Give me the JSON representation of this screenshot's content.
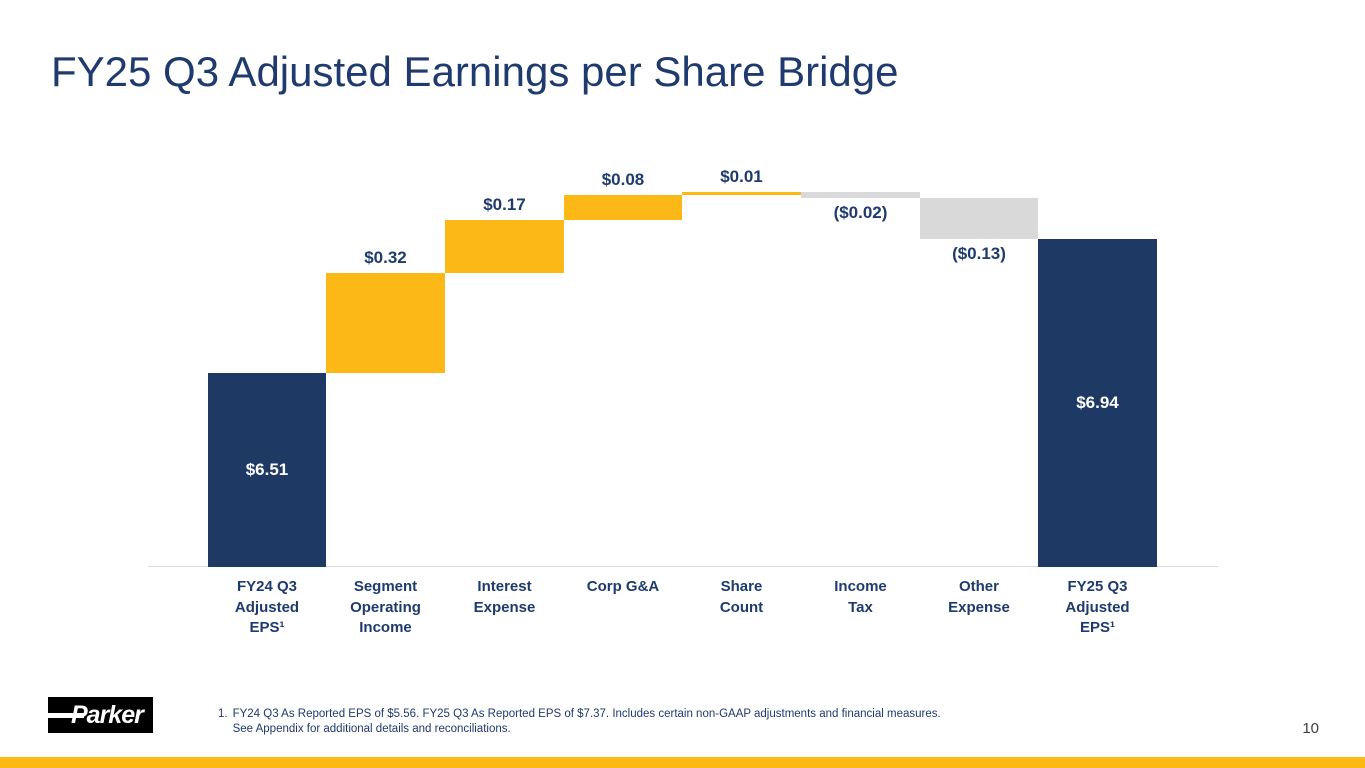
{
  "slide": {
    "title": "FY25 Q3 Adjusted Earnings per Share Bridge",
    "page_number": "10",
    "footnote": {
      "marker": "1.",
      "line1": "FY24 Q3 As Reported EPS of $5.56. FY25 Q3 As Reported EPS of $7.37. Includes certain non-GAAP adjustments and financial measures.",
      "line2": "See Appendix for additional details and reconciliations."
    },
    "logo_text": "Parker"
  },
  "colors": {
    "navy_bar": "#1e3a64",
    "gold_bar": "#fcb817",
    "gray_bar": "#d9d9d9",
    "title_text": "#1f3a6e",
    "value_label_text": "#1f3a6e",
    "value_label_inside_text": "#ffffff",
    "axis_line": "#d9dde3",
    "accent_strip": "#fcb813",
    "logo_background": "#000000"
  },
  "chart_data": {
    "type": "bar",
    "variant": "waterfall",
    "title": "FY25 Q3 Adjusted Earnings per Share Bridge",
    "xlabel": "",
    "ylabel": "",
    "ylim": [
      5.89,
      7.25
    ],
    "grid": false,
    "legend": false,
    "categories": [
      "FY24 Q3 Adjusted EPS¹",
      "Segment Operating Income",
      "Interest Expense",
      "Corp G&A",
      "Share Count",
      "Income Tax",
      "Other Expense",
      "FY25 Q3 Adjusted EPS¹"
    ],
    "category_lines": [
      [
        "FY24 Q3",
        "Adjusted",
        "EPS¹"
      ],
      [
        "Segment",
        "Operating",
        "Income"
      ],
      [
        "Interest",
        "Expense"
      ],
      [
        "Corp G&A"
      ],
      [
        "Share",
        "Count"
      ],
      [
        "Income",
        "Tax"
      ],
      [
        "Other",
        "Expense"
      ],
      [
        "FY25 Q3",
        "Adjusted",
        "EPS¹"
      ]
    ],
    "bars": [
      {
        "kind": "total",
        "value": 6.51,
        "display": "$6.51"
      },
      {
        "kind": "delta",
        "value": 0.32,
        "display": "$0.32"
      },
      {
        "kind": "delta",
        "value": 0.17,
        "display": "$0.17"
      },
      {
        "kind": "delta",
        "value": 0.08,
        "display": "$0.08"
      },
      {
        "kind": "delta",
        "value": 0.01,
        "display": "$0.01"
      },
      {
        "kind": "delta",
        "value": -0.02,
        "display": "($0.02)"
      },
      {
        "kind": "delta",
        "value": -0.13,
        "display": "($0.13)"
      },
      {
        "kind": "total",
        "value": 6.94,
        "display": "$6.94"
      }
    ]
  }
}
